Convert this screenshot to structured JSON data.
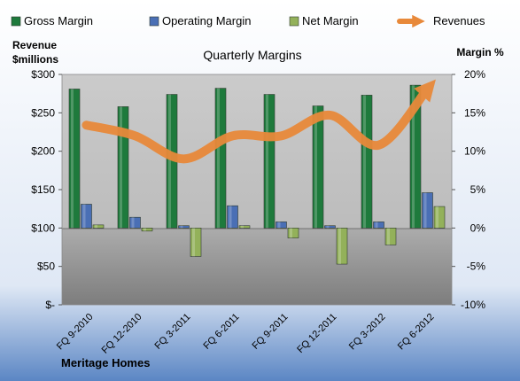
{
  "colors": {
    "gross_margin": "#1e7a3c",
    "operating_margin": "#4a6fb5",
    "net_margin": "#93b15a",
    "revenues": "#e8893a"
  },
  "chart_data": {
    "type": "bar",
    "title": "Quarterly Margins",
    "source_label": "Meritage Homes",
    "left_axis": {
      "label_line1": "Revenue",
      "label_line2": "$millions",
      "range": [
        0,
        300
      ],
      "ticks": [
        0,
        50,
        100,
        150,
        200,
        250,
        300
      ],
      "tick_labels": [
        "$-",
        "$50",
        "$100",
        "$150",
        "$200",
        "$250",
        "$300"
      ]
    },
    "right_axis": {
      "label": "Margin  %",
      "range": [
        -10,
        20
      ],
      "ticks": [
        -10,
        -5,
        0,
        5,
        10,
        15,
        20
      ],
      "tick_labels": [
        "-10%",
        "-5%",
        "0%",
        "5%",
        "10%",
        "15%",
        "20%"
      ]
    },
    "categories": [
      "FQ 9-2010",
      "FQ 12-2010",
      "FQ 3-2011",
      "FQ 6-2011",
      "FQ 9-2011",
      "FQ 12-2011",
      "FQ 3-2012",
      "FQ 6-2012"
    ],
    "legend_position": "top",
    "grid": false,
    "series": [
      {
        "name": "Gross Margin",
        "axis": "right",
        "kind": "bar",
        "color_key": "gross_margin",
        "values": [
          18.1,
          15.8,
          17.4,
          18.2,
          17.4,
          15.9,
          17.3,
          18.6
        ]
      },
      {
        "name": "Operating Margin",
        "axis": "right",
        "kind": "bar",
        "color_key": "operating_margin",
        "values": [
          3.1,
          1.4,
          0.3,
          2.9,
          0.8,
          0.3,
          0.8,
          4.6
        ]
      },
      {
        "name": "Net Margin",
        "axis": "right",
        "kind": "bar",
        "color_key": "net_margin",
        "values": [
          0.4,
          -0.4,
          -3.7,
          0.3,
          -1.3,
          -4.7,
          -2.2,
          2.8
        ]
      },
      {
        "name": "Revenues",
        "axis": "left",
        "kind": "line",
        "color_key": "revenues",
        "values": [
          234,
          220,
          190,
          220,
          220,
          247,
          208,
          281
        ]
      }
    ]
  }
}
